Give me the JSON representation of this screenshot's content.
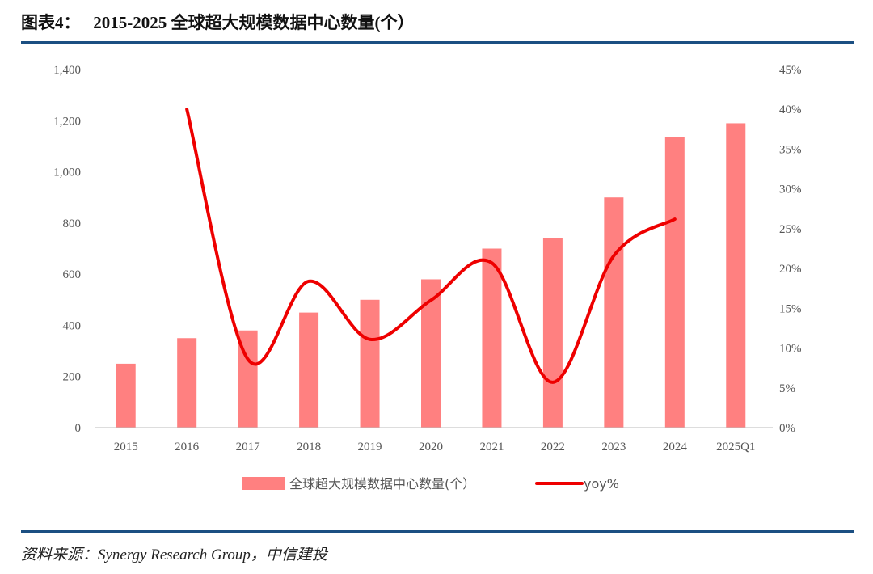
{
  "header": {
    "title": "图表4：   2015-2025 全球超大规模数据中心数量(个）"
  },
  "footer": {
    "source": "资料来源：Synergy Research Group，中信建投"
  },
  "colors": {
    "bar": "#ff8080",
    "line": "#ee0000",
    "rule": "#1b4f82"
  },
  "chart_data": {
    "type": "bar+line",
    "categories": [
      "2015",
      "2016",
      "2017",
      "2018",
      "2019",
      "2020",
      "2021",
      "2022",
      "2023",
      "2024",
      "2025Q1"
    ],
    "series": [
      {
        "name": "全球超大规模数据中心数量(个）",
        "type": "bar",
        "axis": "left",
        "values": [
          250,
          350,
          380,
          450,
          500,
          580,
          700,
          740,
          900,
          1136,
          1190
        ]
      },
      {
        "name": "yoy%",
        "type": "line",
        "axis": "right",
        "values": [
          null,
          40.0,
          8.6,
          18.4,
          11.1,
          16.0,
          20.7,
          5.7,
          21.6,
          26.2,
          null
        ]
      }
    ],
    "y_left": {
      "range": [
        0,
        1400
      ],
      "ticks": [
        "0",
        "200",
        "400",
        "600",
        "800",
        "1,000",
        "1,200",
        "1,400"
      ]
    },
    "y_right": {
      "range": [
        0,
        45
      ],
      "ticks": [
        "0%",
        "5%",
        "10%",
        "15%",
        "20%",
        "25%",
        "30%",
        "35%",
        "40%",
        "45%"
      ]
    },
    "grid": false,
    "legend": "bottom"
  }
}
